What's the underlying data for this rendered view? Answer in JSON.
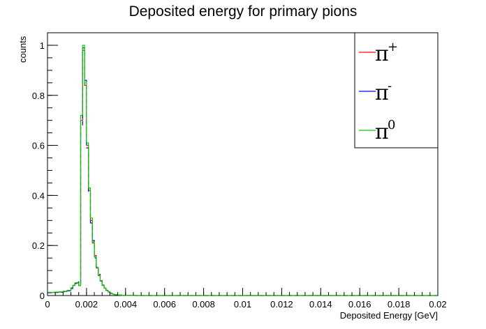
{
  "chart_data": {
    "type": "line",
    "title": "Deposited energy for primary pions",
    "xlabel": "Deposited Energy [GeV]",
    "ylabel": "counts",
    "xlim": [
      0,
      0.02
    ],
    "ylim": [
      0,
      1.05
    ],
    "grid": false,
    "x_ticks": [
      "0",
      "0.002",
      "0.004",
      "0.006",
      "0.008",
      "0.01",
      "0.012",
      "0.014",
      "0.016",
      "0.018",
      "0.02"
    ],
    "y_ticks": [
      "0",
      "0.2",
      "0.4",
      "0.6",
      "0.8",
      "1"
    ],
    "legend": {
      "placement": "top-right",
      "entries": [
        {
          "base": "π",
          "sup": "+",
          "color": "#ff0000"
        },
        {
          "base": "π",
          "sup": "-",
          "color": "#0000ff"
        },
        {
          "base": "π",
          "sup": "0",
          "color": "#00cc00"
        }
      ]
    },
    "series": [
      {
        "name": "π+",
        "color": "#ff0000",
        "x": [
          0,
          0.0002,
          0.0004,
          0.0006,
          0.0008,
          0.001,
          0.0012,
          0.0013,
          0.0014,
          0.0015,
          0.0016,
          0.0017,
          0.0018,
          0.0019,
          0.002,
          0.0021,
          0.0022,
          0.0023,
          0.0024,
          0.0025,
          0.0026,
          0.0027,
          0.0028,
          0.0029,
          0.003,
          0.0031,
          0.0032,
          0.0033,
          0.0034,
          0.0035,
          0.0036,
          0.0038,
          0.004,
          0.0045,
          0.005,
          0.01,
          0.015,
          0.02
        ],
        "values": [
          0.012,
          0.012,
          0.013,
          0.014,
          0.016,
          0.02,
          0.03,
          0.04,
          0.05,
          0.052,
          0.04,
          0.7,
          0.98,
          0.84,
          0.6,
          0.42,
          0.3,
          0.21,
          0.16,
          0.11,
          0.08,
          0.06,
          0.04,
          0.03,
          0.02,
          0.015,
          0.01,
          0.006,
          0.004,
          0.003,
          0.002,
          0.001,
          0.0005,
          0,
          0,
          0,
          0,
          0
        ]
      },
      {
        "name": "π-",
        "color": "#0000ff",
        "x": [
          0,
          0.0002,
          0.0004,
          0.0006,
          0.0008,
          0.001,
          0.0012,
          0.0013,
          0.0014,
          0.0015,
          0.0016,
          0.0017,
          0.0018,
          0.0019,
          0.002,
          0.0021,
          0.0022,
          0.0023,
          0.0024,
          0.0025,
          0.0026,
          0.0027,
          0.0028,
          0.0029,
          0.003,
          0.0031,
          0.0032,
          0.0033,
          0.0034,
          0.0035,
          0.0036,
          0.0038,
          0.004,
          0.0045,
          0.005,
          0.01,
          0.015,
          0.02
        ],
        "values": [
          0.011,
          0.012,
          0.012,
          0.013,
          0.015,
          0.019,
          0.028,
          0.038,
          0.048,
          0.055,
          0.042,
          0.68,
          0.99,
          0.86,
          0.59,
          0.41,
          0.29,
          0.22,
          0.15,
          0.115,
          0.085,
          0.058,
          0.042,
          0.028,
          0.021,
          0.014,
          0.009,
          0.006,
          0.004,
          0.003,
          0.002,
          0.001,
          0.0005,
          0,
          0,
          0,
          0,
          0
        ]
      },
      {
        "name": "π0",
        "color": "#00cc00",
        "x": [
          0,
          0.0002,
          0.0004,
          0.0006,
          0.0008,
          0.001,
          0.0012,
          0.0013,
          0.0014,
          0.0015,
          0.0016,
          0.0017,
          0.0018,
          0.0019,
          0.002,
          0.0021,
          0.0022,
          0.0023,
          0.0024,
          0.0025,
          0.0026,
          0.0027,
          0.0028,
          0.0029,
          0.003,
          0.0031,
          0.0032,
          0.0033,
          0.0034,
          0.0035,
          0.0036,
          0.0038,
          0.004,
          0.0045,
          0.005,
          0.01,
          0.015,
          0.02
        ],
        "values": [
          0.013,
          0.013,
          0.014,
          0.015,
          0.017,
          0.021,
          0.031,
          0.041,
          0.051,
          0.05,
          0.04,
          0.72,
          1.0,
          0.85,
          0.61,
          0.43,
          0.31,
          0.215,
          0.155,
          0.112,
          0.082,
          0.059,
          0.041,
          0.029,
          0.02,
          0.014,
          0.009,
          0.006,
          0.004,
          0.003,
          0.002,
          0.001,
          0.0005,
          0,
          0,
          0,
          0,
          0
        ]
      }
    ]
  }
}
